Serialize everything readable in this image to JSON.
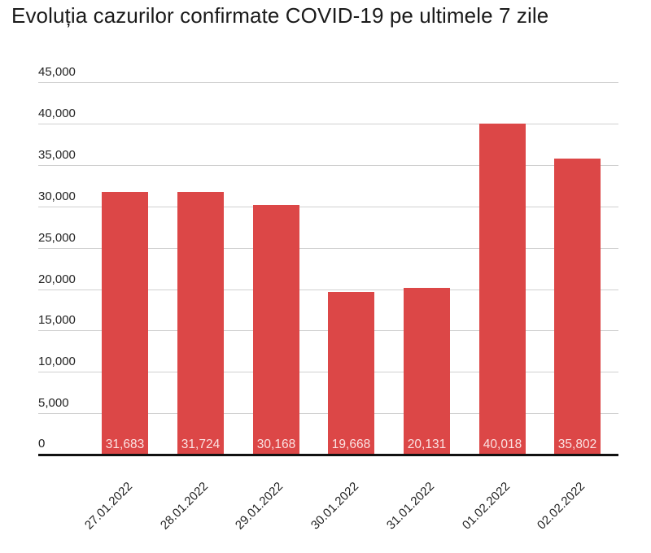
{
  "chart_data": {
    "type": "bar",
    "title": "Evoluția cazurilor confirmate COVID-19 pe ultimele 7 zile",
    "xlabel": "",
    "ylabel": "",
    "categories": [
      "27.01.2022",
      "28.01.2022",
      "29.01.2022",
      "30.01.2022",
      "31.01.2022",
      "01.02.2022",
      "02.02.2022"
    ],
    "values": [
      31683,
      31724,
      30168,
      19668,
      20131,
      40018,
      35802
    ],
    "value_labels": [
      "31,683",
      "31,724",
      "30,168",
      "19,668",
      "20,131",
      "40,018",
      "35,802"
    ],
    "ylim": [
      0,
      45000
    ],
    "yticks": [
      0,
      5000,
      10000,
      15000,
      20000,
      25000,
      30000,
      35000,
      40000,
      45000
    ],
    "ytick_labels": [
      "0",
      "5,000",
      "10,000",
      "15,000",
      "20,000",
      "25,000",
      "30,000",
      "35,000",
      "40,000",
      "45,000"
    ],
    "grid": true,
    "legend": null,
    "colors": {
      "bar": "#dc4747",
      "grid": "#d0d0d0",
      "axis": "#111111",
      "value_label": "#fbe3e3"
    }
  }
}
